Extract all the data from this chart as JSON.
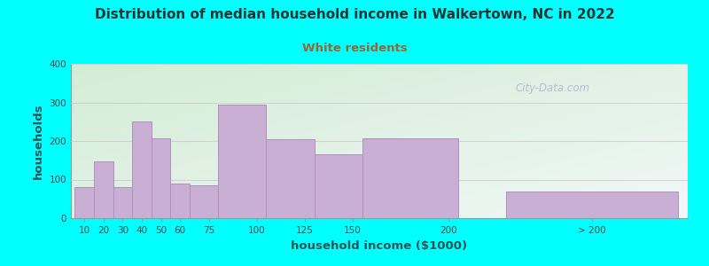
{
  "title": "Distribution of median household income in Walkertown, NC in 2022",
  "subtitle": "White residents",
  "xlabel": "household income ($1000)",
  "ylabel": "households",
  "background_outer": "#00FFFF",
  "background_inner_left_color": "#d4ecd4",
  "background_inner_right_color": "#f0f8f8",
  "bar_color": "#c9afd4",
  "bar_edge_color": "#b090c0",
  "title_color": "#1a3333",
  "subtitle_color": "#996633",
  "axis_label_color": "#2a5555",
  "tick_color": "#444444",
  "watermark_text": "City-Data.com",
  "watermark_color": "#aabbcc",
  "values": [
    80,
    148,
    80,
    250,
    207,
    90,
    85,
    295,
    205,
    165,
    207,
    70
  ],
  "bar_lefts": [
    5,
    15,
    25,
    35,
    45,
    55,
    65,
    80,
    105,
    130,
    155,
    230
  ],
  "bar_widths": [
    10,
    10,
    10,
    10,
    10,
    10,
    15,
    25,
    25,
    25,
    50,
    90
  ],
  "xlim": [
    3,
    325
  ],
  "ylim": [
    0,
    400
  ],
  "yticks": [
    0,
    100,
    200,
    300,
    400
  ],
  "xtick_positions": [
    10,
    20,
    30,
    40,
    50,
    60,
    75,
    100,
    125,
    150,
    200,
    275
  ],
  "xtick_labels": [
    "10",
    "20",
    "30",
    "40",
    "50",
    "60",
    "75",
    "100",
    "125",
    "150",
    "200",
    "> 200"
  ],
  "grid_color": "#cccccc",
  "spine_color": "#999999"
}
